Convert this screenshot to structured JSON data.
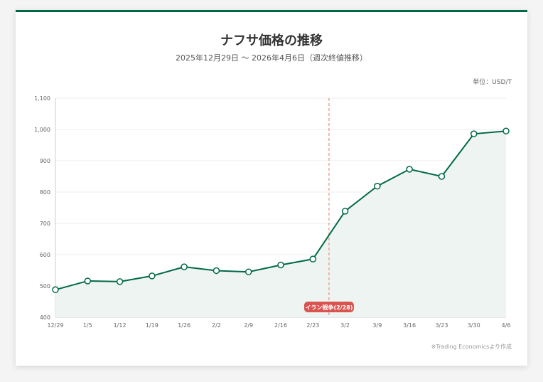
{
  "header": {
    "title": "ナフサ価格の推移",
    "subtitle": "2025年12月29日 ～ 2026年4月6日（週次終値推移）",
    "unit": "単位：USD/T"
  },
  "footer": {
    "source": "※Trading Economicsより作成"
  },
  "colors": {
    "line": "#006a45",
    "area": "#eef4f1",
    "event": "#d9534f",
    "grid": "#eeeeee"
  },
  "chart_data": {
    "type": "line",
    "x": [
      "12/29",
      "1/5",
      "1/12",
      "1/19",
      "1/26",
      "2/2",
      "2/9",
      "2/16",
      "2/23",
      "3/2",
      "3/9",
      "3/16",
      "3/23",
      "3/30",
      "4/6"
    ],
    "values": [
      488,
      516,
      514,
      532,
      561,
      549,
      545,
      567,
      586,
      739,
      819,
      873,
      850,
      986,
      995
    ],
    "ylim": [
      400,
      1100
    ],
    "yticks": [
      "400",
      "500",
      "600",
      "700",
      "800",
      "900",
      "1,000",
      "1,100"
    ],
    "grid": true,
    "annotation": {
      "label": "イラン戦争(2/28)",
      "x_after": "2/23",
      "offset_weeks": 0.5
    }
  }
}
